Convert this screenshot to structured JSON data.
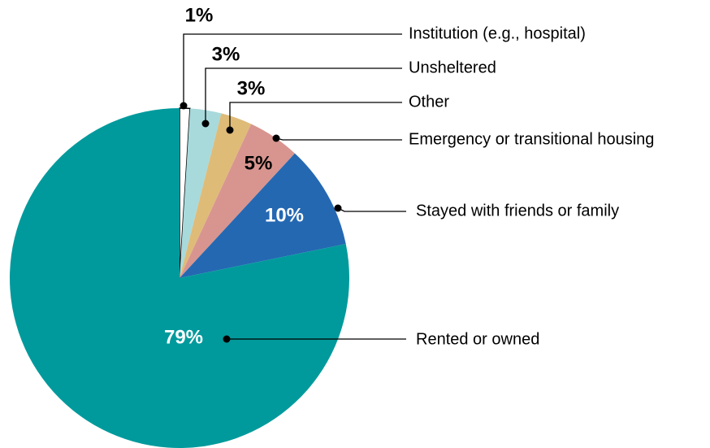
{
  "chart_data": {
    "type": "pie",
    "categories": [
      "Institution (e.g., hospital)",
      "Unsheltered",
      "Other",
      "Emergency or transitional housing",
      "Stayed with friends or family",
      "Rented or owned"
    ],
    "values": [
      1,
      3,
      3,
      5,
      10,
      79
    ],
    "value_labels": [
      "1%",
      "3%",
      "3%",
      "5%",
      "10%",
      "79%"
    ],
    "colors": [
      "#ffffff",
      "#a8dadc",
      "#dfbb78",
      "#d8958f",
      "#2468b2",
      "#009a9c"
    ]
  }
}
